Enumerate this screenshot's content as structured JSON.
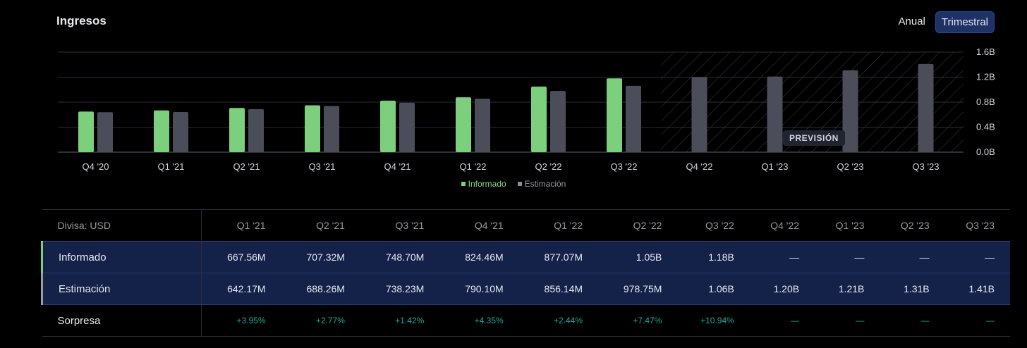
{
  "header": {
    "title": "Ingresos",
    "period_annual": "Anual",
    "period_quarterly": "Trimestral"
  },
  "legend": {
    "reported": "Informado",
    "estimate": "Estimación"
  },
  "forecast_label": "PREVISIÓN",
  "colors": {
    "reported": "#7ccf7c",
    "estimate": "#4b4e59",
    "background": "#000000",
    "selected": "#1e3266"
  },
  "chart_data": {
    "type": "bar",
    "categories": [
      "Q4 '20",
      "Q1 '21",
      "Q2 '21",
      "Q3 '21",
      "Q4 '21",
      "Q1 '22",
      "Q2 '22",
      "Q3 '22",
      "Q4 '22",
      "Q1 '23",
      "Q2 '23",
      "Q3 '23"
    ],
    "series": [
      {
        "name": "Informado",
        "values": [
          0.65,
          0.66756,
          0.70732,
          0.7487,
          0.82446,
          0.87707,
          1.05,
          1.18,
          null,
          null,
          null,
          null
        ]
      },
      {
        "name": "Estimación",
        "values": [
          0.64,
          0.64217,
          0.68826,
          0.73823,
          0.7901,
          0.85614,
          0.97875,
          1.06,
          1.2,
          1.21,
          1.31,
          1.41
        ]
      }
    ],
    "y_ticks": [
      "0.0B",
      "0.4B",
      "0.8B",
      "1.2B",
      "1.6B"
    ],
    "ylim": [
      0,
      1.6
    ],
    "y_unit": "B USD",
    "forecast_start_index": 8,
    "grid": true,
    "legend_position": "bottom-center"
  },
  "table": {
    "corner": "Divisa: USD",
    "columns": [
      "Q1 '21",
      "Q2 '21",
      "Q3 '21",
      "Q4 '21",
      "Q1 '22",
      "Q2 '22",
      "Q3 '22",
      "Q4 '22",
      "Q1 '23",
      "Q2 '23",
      "Q3 '23"
    ],
    "rows": [
      {
        "label": "Informado",
        "values": [
          "667.56M",
          "707.32M",
          "748.70M",
          "824.46M",
          "877.07M",
          "1.05B",
          "1.18B",
          "—",
          "—",
          "—",
          "—"
        ]
      },
      {
        "label": "Estimación",
        "values": [
          "642.17M",
          "688.26M",
          "738.23M",
          "790.10M",
          "856.14M",
          "978.75M",
          "1.06B",
          "1.20B",
          "1.21B",
          "1.31B",
          "1.41B"
        ]
      },
      {
        "label": "Sorpresa",
        "values": [
          "+3.95%",
          "+2.77%",
          "+1.42%",
          "+4.35%",
          "+2.44%",
          "+7.47%",
          "+10.94%",
          "—",
          "—",
          "—",
          "—"
        ]
      }
    ]
  }
}
